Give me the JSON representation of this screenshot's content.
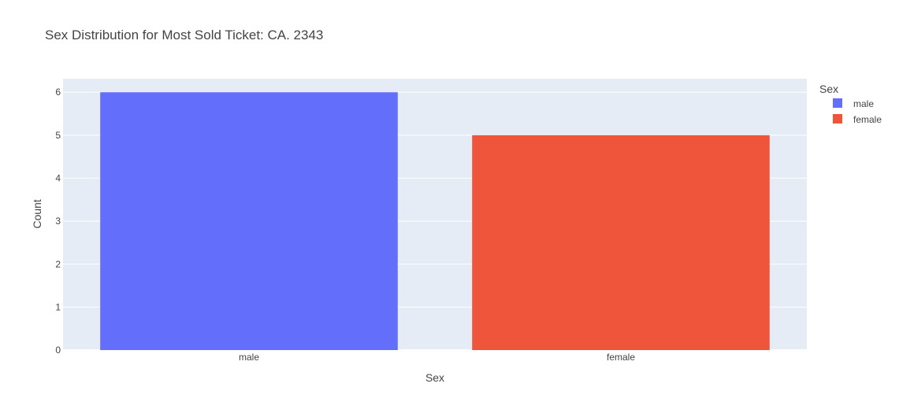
{
  "chart_data": {
    "type": "bar",
    "title": "Sex Distribution for Most Sold Ticket: CA. 2343",
    "xlabel": "Sex",
    "ylabel": "Count",
    "categories": [
      "male",
      "female"
    ],
    "values": [
      6,
      5
    ],
    "colors": [
      "#636efa",
      "#ef553b"
    ],
    "ylim": [
      0,
      6.315789
    ],
    "yticks": [
      0,
      1,
      2,
      3,
      4,
      5,
      6
    ],
    "grid": true,
    "plot_background": "#e5ecf6",
    "legend": {
      "title": "Sex",
      "position": "top-right",
      "items": [
        {
          "label": "male",
          "color": "#636efa"
        },
        {
          "label": "female",
          "color": "#ef553b"
        }
      ]
    }
  }
}
